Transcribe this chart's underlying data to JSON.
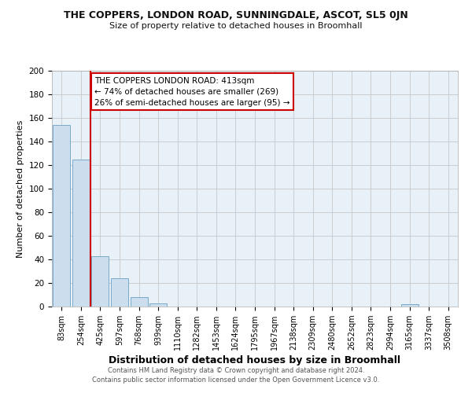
{
  "title": "THE COPPERS, LONDON ROAD, SUNNINGDALE, ASCOT, SL5 0JN",
  "subtitle": "Size of property relative to detached houses in Broomhall",
  "xlabel": "Distribution of detached houses by size in Broomhall",
  "ylabel": "Number of detached properties",
  "bar_color": "#ccdded",
  "bar_edge_color": "#7aaac8",
  "categories": [
    "83sqm",
    "254sqm",
    "425sqm",
    "597sqm",
    "768sqm",
    "939sqm",
    "1110sqm",
    "1282sqm",
    "1453sqm",
    "1624sqm",
    "1795sqm",
    "1967sqm",
    "2138sqm",
    "2309sqm",
    "2480sqm",
    "2652sqm",
    "2823sqm",
    "2994sqm",
    "3165sqm",
    "3337sqm",
    "3508sqm"
  ],
  "values": [
    154,
    125,
    43,
    24,
    8,
    3,
    0,
    0,
    0,
    0,
    0,
    0,
    0,
    0,
    0,
    0,
    0,
    0,
    2,
    0,
    0
  ],
  "red_line_x": 1.5,
  "annotation_line1": "THE COPPERS LONDON ROAD: 413sqm",
  "annotation_line2": "← 74% of detached houses are smaller (269)",
  "annotation_line3": "26% of semi-detached houses are larger (95) →",
  "annotation_box_facecolor": "#ffffff",
  "annotation_box_edgecolor": "#cc0000",
  "red_line_color": "#cc0000",
  "ylim": [
    0,
    200
  ],
  "yticks": [
    0,
    20,
    40,
    60,
    80,
    100,
    120,
    140,
    160,
    180,
    200
  ],
  "footer_line1": "Contains HM Land Registry data © Crown copyright and database right 2024.",
  "footer_line2": "Contains public sector information licensed under the Open Government Licence v3.0.",
  "bg_color": "#ffffff",
  "plot_bg_color": "#e8f0f8",
  "grid_color": "#c8c8c8",
  "title_fontsize": 9,
  "subtitle_fontsize": 8,
  "xlabel_fontsize": 9,
  "ylabel_fontsize": 8,
  "tick_fontsize": 7,
  "annot_fontsize": 7.5,
  "footer_fontsize": 6
}
